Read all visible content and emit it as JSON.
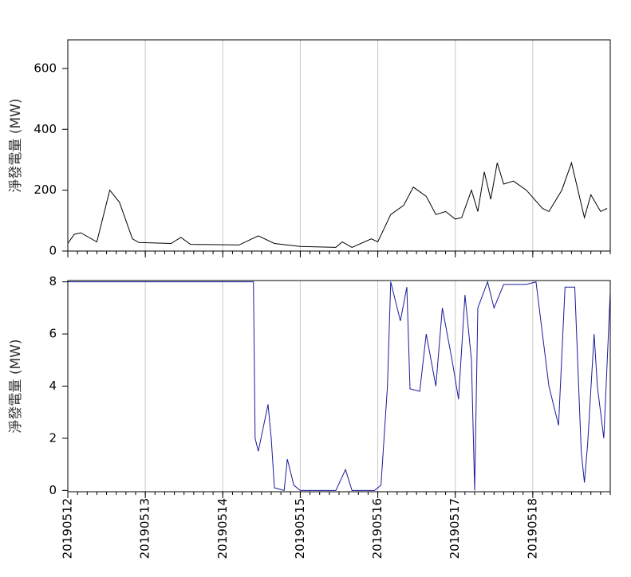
{
  "chart_data": [
    {
      "type": "line",
      "ylabel": "淨發電量 (MW)",
      "xlim": [
        0,
        168
      ],
      "xticks": [
        0,
        24,
        48,
        72,
        96,
        120,
        144
      ],
      "ylim": [
        0,
        694
      ],
      "yticks": [
        0,
        200,
        400,
        600
      ],
      "grid": true,
      "series": [
        {
          "name": "淨發電量",
          "color": "#000000",
          "x": [
            0,
            2,
            4,
            9,
            13,
            16,
            20,
            22,
            32,
            35,
            38,
            53,
            59,
            64,
            72,
            83,
            85,
            88,
            94,
            96,
            100,
            104,
            107,
            111,
            114,
            117,
            120,
            122,
            125,
            127,
            129,
            131,
            133,
            135,
            138,
            142,
            147,
            149,
            153,
            156,
            158,
            160,
            162,
            165,
            167
          ],
          "values": [
            25,
            55,
            60,
            30,
            200,
            160,
            40,
            28,
            25,
            45,
            22,
            20,
            50,
            25,
            15,
            12,
            30,
            12,
            40,
            30,
            120,
            150,
            210,
            180,
            120,
            130,
            105,
            110,
            200,
            130,
            260,
            170,
            290,
            220,
            230,
            200,
            140,
            130,
            200,
            290,
            200,
            110,
            185,
            130,
            140
          ]
        }
      ]
    },
    {
      "type": "line",
      "ylabel": "淨發電量 (MW)",
      "xlim": [
        0,
        168
      ],
      "xticks": [
        {
          "value": 0,
          "label": "20190512"
        },
        {
          "value": 24,
          "label": "20190513"
        },
        {
          "value": 48,
          "label": "20190514"
        },
        {
          "value": 72,
          "label": "20190515"
        },
        {
          "value": 96,
          "label": "20190516"
        },
        {
          "value": 120,
          "label": "20190517"
        },
        {
          "value": 144,
          "label": "20190518"
        }
      ],
      "ylim": [
        -0.05,
        8.05
      ],
      "yticks": [
        0,
        2,
        4,
        6,
        8
      ],
      "grid": true,
      "series": [
        {
          "name": "淨發電量",
          "color": "#1a1a9a",
          "x": [
            0,
            57.5,
            58,
            59,
            62,
            63,
            64,
            67,
            68,
            70,
            72,
            83,
            86,
            88,
            95,
            97,
            99,
            100,
            103,
            105,
            106,
            109,
            111,
            114,
            116,
            119,
            121,
            123,
            125,
            126,
            127,
            130,
            132,
            135,
            142,
            145,
            147,
            149,
            152,
            154,
            157,
            159,
            160,
            161,
            163,
            164,
            166,
            168
          ],
          "values": [
            8,
            8,
            2,
            1.5,
            3.3,
            2,
            0.1,
            0,
            1.2,
            0.2,
            0,
            0,
            0.8,
            0,
            0,
            0.2,
            4,
            8,
            6.5,
            7.8,
            3.9,
            3.8,
            6,
            4,
            7,
            5,
            3.5,
            7.5,
            5,
            0,
            7,
            8,
            7,
            7.9,
            7.9,
            8,
            6,
            4,
            2.5,
            7.8,
            7.8,
            1.5,
            0.3,
            1.8,
            6,
            4,
            2,
            7.6
          ]
        }
      ]
    }
  ]
}
